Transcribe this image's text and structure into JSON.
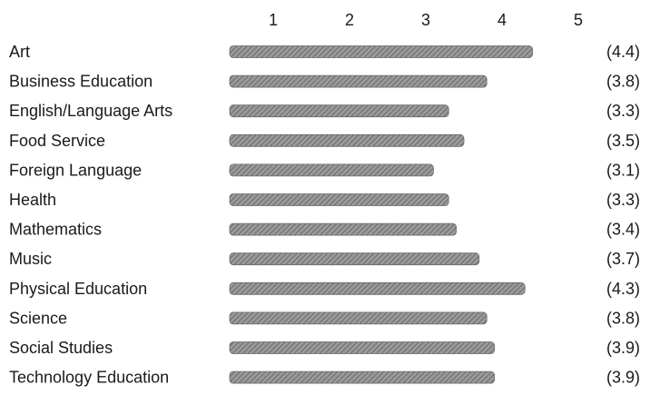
{
  "chart_data": {
    "type": "bar",
    "orientation": "horizontal",
    "title": "",
    "xlabel": "",
    "ylabel": "",
    "xlim": [
      0,
      5
    ],
    "x_ticks": [
      "1",
      "2",
      "3",
      "4",
      "5"
    ],
    "grid": false,
    "categories": [
      "Art",
      "Business Education",
      "English/Language Arts",
      "Food Service",
      "Foreign Language",
      "Health",
      "Mathematics",
      "Music",
      "Physical Education",
      "Science",
      "Social Studies",
      "Technology Education"
    ],
    "values": [
      4.4,
      3.8,
      3.3,
      3.5,
      3.1,
      3.3,
      3.4,
      3.7,
      4.3,
      3.8,
      3.9,
      3.9
    ],
    "value_labels": [
      "(4.4)",
      "(3.8)",
      "(3.3)",
      "(3.5)",
      "(3.1)",
      "(3.3)",
      "(3.4)",
      "(3.7)",
      "(4.3)",
      "(3.8)",
      "(3.9)",
      "(3.9)"
    ],
    "bar_color": "#8a8a8a"
  }
}
